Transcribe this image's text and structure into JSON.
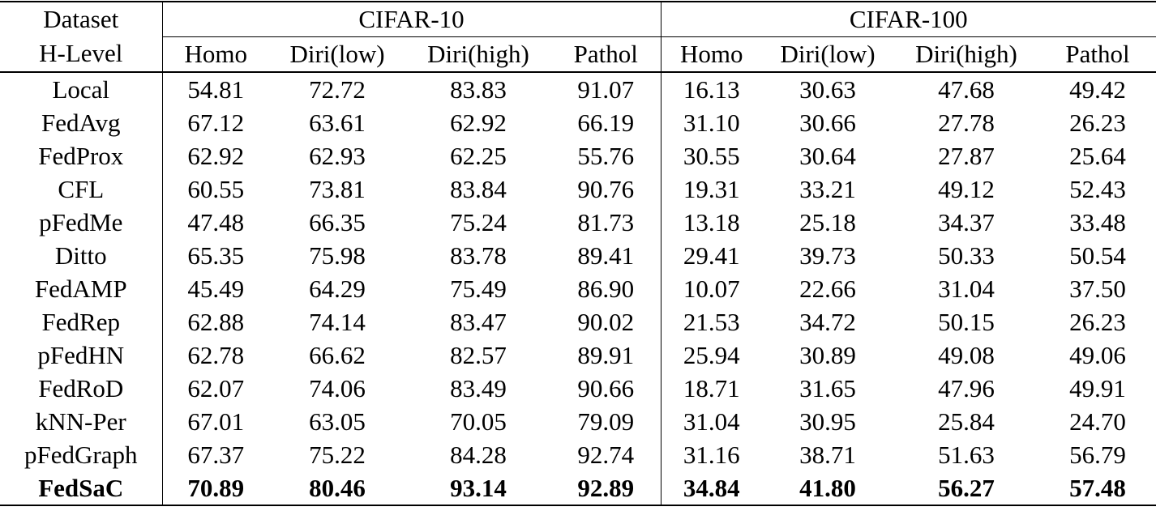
{
  "table": {
    "corner": {
      "line1": "Dataset",
      "line2": "H-Level"
    },
    "groups": [
      "CIFAR-10",
      "CIFAR-100"
    ],
    "subcolumns": [
      "Homo",
      "Diri(low)",
      "Diri(high)",
      "Pathol"
    ],
    "rows": [
      {
        "method": "Local",
        "bold": false,
        "values": [
          "54.81",
          "72.72",
          "83.83",
          "91.07",
          "16.13",
          "30.63",
          "47.68",
          "49.42"
        ]
      },
      {
        "method": "FedAvg",
        "bold": false,
        "values": [
          "67.12",
          "63.61",
          "62.92",
          "66.19",
          "31.10",
          "30.66",
          "27.78",
          "26.23"
        ]
      },
      {
        "method": "FedProx",
        "bold": false,
        "values": [
          "62.92",
          "62.93",
          "62.25",
          "55.76",
          "30.55",
          "30.64",
          "27.87",
          "25.64"
        ]
      },
      {
        "method": "CFL",
        "bold": false,
        "values": [
          "60.55",
          "73.81",
          "83.84",
          "90.76",
          "19.31",
          "33.21",
          "49.12",
          "52.43"
        ]
      },
      {
        "method": "pFedMe",
        "bold": false,
        "values": [
          "47.48",
          "66.35",
          "75.24",
          "81.73",
          "13.18",
          "25.18",
          "34.37",
          "33.48"
        ]
      },
      {
        "method": "Ditto",
        "bold": false,
        "values": [
          "65.35",
          "75.98",
          "83.78",
          "89.41",
          "29.41",
          "39.73",
          "50.33",
          "50.54"
        ]
      },
      {
        "method": "FedAMP",
        "bold": false,
        "values": [
          "45.49",
          "64.29",
          "75.49",
          "86.90",
          "10.07",
          "22.66",
          "31.04",
          "37.50"
        ]
      },
      {
        "method": "FedRep",
        "bold": false,
        "values": [
          "62.88",
          "74.14",
          "83.47",
          "90.02",
          "21.53",
          "34.72",
          "50.15",
          "26.23"
        ]
      },
      {
        "method": "pFedHN",
        "bold": false,
        "values": [
          "62.78",
          "66.62",
          "82.57",
          "89.91",
          "25.94",
          "30.89",
          "49.08",
          "49.06"
        ]
      },
      {
        "method": "FedRoD",
        "bold": false,
        "values": [
          "62.07",
          "74.06",
          "83.49",
          "90.66",
          "18.71",
          "31.65",
          "47.96",
          "49.91"
        ]
      },
      {
        "method": "kNN-Per",
        "bold": false,
        "values": [
          "67.01",
          "63.05",
          "70.05",
          "79.09",
          "31.04",
          "30.95",
          "25.84",
          "24.70"
        ]
      },
      {
        "method": "pFedGraph",
        "bold": false,
        "values": [
          "67.37",
          "75.22",
          "84.28",
          "92.74",
          "31.16",
          "38.71",
          "51.63",
          "56.79"
        ]
      },
      {
        "method": "FedSaC",
        "bold": true,
        "values": [
          "70.89",
          "80.46",
          "93.14",
          "92.89",
          "34.84",
          "41.80",
          "56.27",
          "57.48"
        ]
      }
    ]
  }
}
